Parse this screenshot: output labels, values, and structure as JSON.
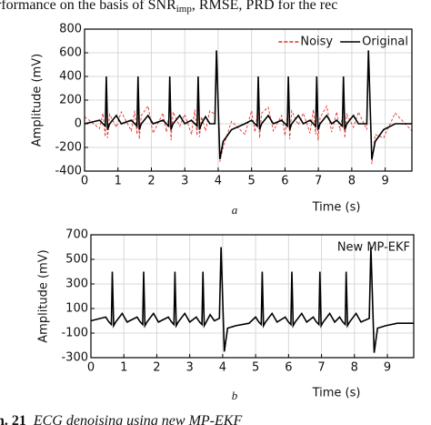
{
  "header": {
    "parts": [
      "rformance on the basis of SNR",
      "imp",
      ", RMSE, PRD for the rec"
    ]
  },
  "chart_data": [
    {
      "type": "line",
      "panel_label": "a",
      "xlabel": "Time (s)",
      "ylabel": "Amplitude (mV)",
      "xlim": [
        0,
        9.8
      ],
      "ylim": [
        -400,
        800
      ],
      "xticks": [
        0,
        1,
        2,
        3,
        4,
        5,
        6,
        7,
        8,
        9
      ],
      "yticks": [
        -400,
        -200,
        0,
        200,
        400,
        600,
        800
      ],
      "grid": true,
      "legend": "upper right",
      "legend_marker": true,
      "x": [
        0,
        0.45,
        0.55,
        0.62,
        0.65,
        0.69,
        0.75,
        0.95,
        1.1,
        1.4,
        1.5,
        1.57,
        1.6,
        1.64,
        1.7,
        1.9,
        2.05,
        2.35,
        2.45,
        2.52,
        2.55,
        2.59,
        2.65,
        2.85,
        3.0,
        3.2,
        3.3,
        3.37,
        3.4,
        3.44,
        3.5,
        3.62,
        3.75,
        3.9,
        3.95,
        4.05,
        4.15,
        4.4,
        4.8,
        5.0,
        5.1,
        5.17,
        5.2,
        5.24,
        5.3,
        5.5,
        5.65,
        5.9,
        6.0,
        6.07,
        6.1,
        6.14,
        6.2,
        6.4,
        6.55,
        6.75,
        6.85,
        6.92,
        6.95,
        6.99,
        7.05,
        7.25,
        7.4,
        7.55,
        7.65,
        7.72,
        7.75,
        7.79,
        7.85,
        8.05,
        8.2,
        8.45,
        8.5,
        8.6,
        8.7,
        8.95,
        9.3,
        9.8
      ],
      "series": [
        {
          "name": "Noisy",
          "color": "#e8302a",
          "dashed": true,
          "values": [
            60,
            -40,
            90,
            -110,
            220,
            -120,
            80,
            -30,
            100,
            -60,
            110,
            -90,
            240,
            -130,
            70,
            150,
            -80,
            90,
            -70,
            60,
            230,
            -140,
            100,
            -20,
            80,
            -90,
            120,
            -100,
            250,
            -110,
            60,
            -60,
            110,
            80,
            560,
            -320,
            -200,
            20,
            -90,
            110,
            -70,
            80,
            230,
            -120,
            90,
            140,
            -60,
            70,
            -100,
            60,
            240,
            -130,
            110,
            -10,
            90,
            -80,
            120,
            -90,
            220,
            -140,
            50,
            150,
            -70,
            100,
            -60,
            70,
            250,
            -120,
            80,
            -30,
            100,
            -50,
            580,
            -340,
            -90,
            -120,
            90,
            -60
          ]
        },
        {
          "name": "Original",
          "color": "#000000",
          "dashed": false,
          "values": [
            0,
            30,
            0,
            -20,
            400,
            -50,
            0,
            70,
            0,
            30,
            0,
            -20,
            400,
            -50,
            0,
            70,
            0,
            30,
            0,
            -20,
            400,
            -50,
            0,
            70,
            0,
            30,
            0,
            -20,
            400,
            -50,
            0,
            60,
            0,
            0,
            620,
            -300,
            -150,
            -50,
            0,
            30,
            0,
            -20,
            400,
            -50,
            0,
            70,
            0,
            30,
            0,
            -20,
            400,
            -50,
            0,
            70,
            0,
            30,
            0,
            -20,
            400,
            -50,
            0,
            70,
            0,
            30,
            0,
            -20,
            400,
            -50,
            0,
            70,
            0,
            0,
            620,
            -300,
            -150,
            -50,
            0,
            0
          ]
        }
      ]
    },
    {
      "type": "line",
      "panel_label": "b",
      "xlabel": "Time (s)",
      "ylabel": "Amplitude (mV)",
      "xlim": [
        0,
        9.8
      ],
      "ylim": [
        -300,
        700
      ],
      "xticks": [
        0,
        1,
        2,
        3,
        4,
        5,
        6,
        7,
        8,
        9
      ],
      "yticks": [
        -300,
        -100,
        100,
        300,
        500,
        700
      ],
      "grid": true,
      "legend": "upper right",
      "legend_marker": false,
      "x": [
        0,
        0.45,
        0.55,
        0.62,
        0.65,
        0.69,
        0.75,
        0.95,
        1.1,
        1.4,
        1.5,
        1.57,
        1.6,
        1.64,
        1.7,
        1.9,
        2.05,
        2.35,
        2.45,
        2.52,
        2.55,
        2.59,
        2.65,
        2.85,
        3.0,
        3.2,
        3.3,
        3.37,
        3.4,
        3.44,
        3.5,
        3.62,
        3.75,
        3.9,
        3.95,
        4.05,
        4.15,
        4.4,
        4.8,
        5.0,
        5.1,
        5.17,
        5.2,
        5.24,
        5.3,
        5.5,
        5.65,
        5.9,
        6.0,
        6.07,
        6.1,
        6.14,
        6.2,
        6.4,
        6.55,
        6.75,
        6.85,
        6.92,
        6.95,
        6.99,
        7.05,
        7.25,
        7.4,
        7.55,
        7.65,
        7.72,
        7.75,
        7.79,
        7.85,
        8.05,
        8.2,
        8.45,
        8.5,
        8.6,
        8.7,
        8.95,
        9.3,
        9.8
      ],
      "series": [
        {
          "name": "New MP-EKF",
          "color": "#000000",
          "dashed": false,
          "values": [
            0,
            30,
            -10,
            -30,
            400,
            -40,
            -10,
            60,
            -10,
            30,
            -10,
            -30,
            400,
            -40,
            -10,
            60,
            -10,
            30,
            -10,
            -30,
            400,
            -40,
            -10,
            60,
            -10,
            30,
            -10,
            -30,
            400,
            -40,
            -10,
            50,
            0,
            20,
            600,
            -250,
            -60,
            -40,
            -20,
            30,
            -10,
            -30,
            400,
            -40,
            -10,
            60,
            -10,
            30,
            -10,
            -30,
            400,
            -40,
            -10,
            60,
            -10,
            30,
            -10,
            -30,
            400,
            -40,
            -10,
            60,
            -10,
            30,
            -10,
            -30,
            400,
            -40,
            -10,
            60,
            -10,
            20,
            600,
            -260,
            -60,
            -40,
            -20,
            -20
          ]
        }
      ]
    }
  ],
  "footer": {
    "parts": [
      "n. 21",
      "ECG denoising using new MP-EKF"
    ]
  }
}
